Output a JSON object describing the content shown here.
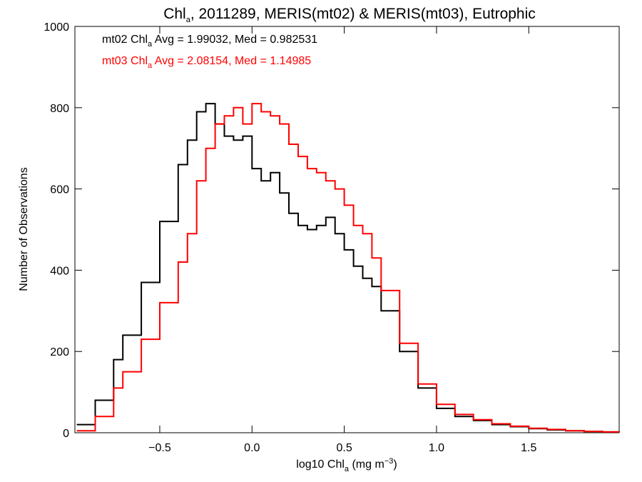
{
  "chart_data": {
    "type": "histogram",
    "title": {
      "pre": "Chl",
      "sub": "a",
      "post": ", 2011289, MERIS(mt02) & MERIS(mt03), Eutrophic"
    },
    "xlabel": {
      "pre": "log10 Chl",
      "sub": "a",
      "post": " (mg m",
      "sup": "−3",
      "close": ")"
    },
    "ylabel": "Number of Observations",
    "xlim": [
      -0.96,
      1.99
    ],
    "ylim": [
      0,
      1000
    ],
    "x_ticks": [
      -0.5,
      0.0,
      0.5,
      1.0,
      1.5
    ],
    "x_tick_labels": [
      "−0.5",
      "0.0",
      "0.5",
      "1.0",
      "1.5"
    ],
    "y_ticks": [
      0,
      200,
      400,
      600,
      800,
      1000
    ],
    "y_tick_labels": [
      "0",
      "200",
      "400",
      "600",
      "800",
      "1000"
    ],
    "grid": false,
    "legend_placement": "top-left",
    "series": [
      {
        "name": "mt02",
        "color": "#000000",
        "legend": {
          "pre": "mt02 Chl",
          "sub": "a",
          "post": " Avg = 1.99032, Med = 0.982531"
        },
        "x": [
          -0.95,
          -0.85,
          -0.75,
          -0.7,
          -0.6,
          -0.5,
          -0.4,
          -0.35,
          -0.3,
          -0.25,
          -0.2,
          -0.15,
          -0.1,
          -0.05,
          0.0,
          0.05,
          0.1,
          0.15,
          0.2,
          0.25,
          0.3,
          0.35,
          0.4,
          0.45,
          0.5,
          0.55,
          0.6,
          0.65,
          0.7,
          0.8,
          0.9,
          1.0,
          1.1,
          1.2,
          1.3,
          1.4,
          1.5,
          1.6,
          1.7,
          1.8,
          1.9,
          1.99
        ],
        "y": [
          20,
          80,
          180,
          240,
          370,
          520,
          660,
          720,
          790,
          810,
          760,
          730,
          720,
          730,
          650,
          620,
          640,
          590,
          540,
          510,
          500,
          510,
          530,
          490,
          450,
          410,
          380,
          360,
          300,
          200,
          110,
          60,
          40,
          30,
          20,
          15,
          10,
          7,
          5,
          3,
          2,
          1
        ]
      },
      {
        "name": "mt03",
        "color": "#ff0000",
        "legend": {
          "pre": "mt03 Chl",
          "sub": "a",
          "post": " Avg = 2.08154, Med = 1.14985"
        },
        "x": [
          -0.95,
          -0.85,
          -0.75,
          -0.7,
          -0.6,
          -0.5,
          -0.4,
          -0.35,
          -0.3,
          -0.25,
          -0.2,
          -0.15,
          -0.1,
          -0.05,
          0.0,
          0.05,
          0.1,
          0.15,
          0.2,
          0.25,
          0.3,
          0.35,
          0.4,
          0.45,
          0.5,
          0.55,
          0.6,
          0.65,
          0.7,
          0.8,
          0.9,
          1.0,
          1.1,
          1.2,
          1.3,
          1.4,
          1.5,
          1.6,
          1.7,
          1.8,
          1.9,
          1.99
        ],
        "y": [
          5,
          40,
          110,
          150,
          230,
          320,
          420,
          490,
          620,
          700,
          760,
          780,
          800,
          760,
          810,
          790,
          780,
          760,
          710,
          680,
          650,
          640,
          620,
          600,
          560,
          510,
          490,
          430,
          350,
          220,
          120,
          70,
          45,
          32,
          22,
          16,
          11,
          8,
          5,
          3,
          2,
          1
        ]
      }
    ]
  }
}
